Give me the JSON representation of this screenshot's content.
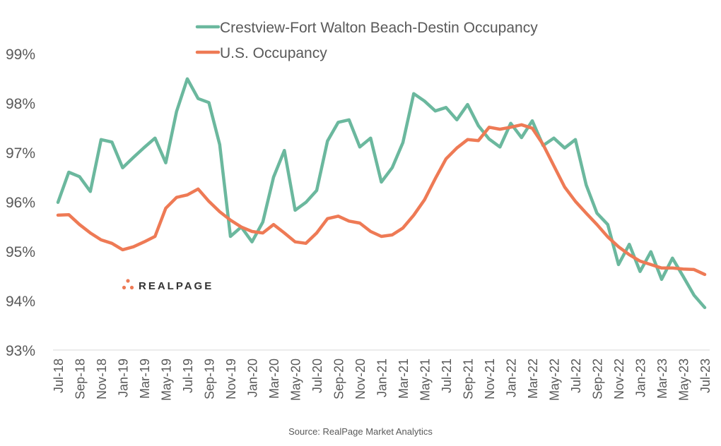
{
  "chart_data": {
    "type": "line",
    "title": "",
    "xlabel": "",
    "ylabel": "",
    "ylim": [
      93,
      99
    ],
    "yticks": [
      "93%",
      "94%",
      "95%",
      "96%",
      "97%",
      "98%",
      "99%"
    ],
    "ytick_values": [
      93,
      94,
      95,
      96,
      97,
      98,
      99
    ],
    "grid": false,
    "legend_position": "top-center",
    "x": [
      "Jul-18",
      "Aug-18",
      "Sep-18",
      "Oct-18",
      "Nov-18",
      "Dec-18",
      "Jan-19",
      "Feb-19",
      "Mar-19",
      "Apr-19",
      "May-19",
      "Jun-19",
      "Jul-19",
      "Aug-19",
      "Sep-19",
      "Oct-19",
      "Nov-19",
      "Dec-19",
      "Jan-20",
      "Feb-20",
      "Mar-20",
      "Apr-20",
      "May-20",
      "Jun-20",
      "Jul-20",
      "Aug-20",
      "Sep-20",
      "Oct-20",
      "Nov-20",
      "Dec-20",
      "Jan-21",
      "Feb-21",
      "Mar-21",
      "Apr-21",
      "May-21",
      "Jun-21",
      "Jul-21",
      "Aug-21",
      "Sep-21",
      "Oct-21",
      "Nov-21",
      "Dec-21",
      "Jan-22",
      "Feb-22",
      "Mar-22",
      "Apr-22",
      "May-22",
      "Jun-22",
      "Jul-22",
      "Aug-22",
      "Sep-22",
      "Oct-22",
      "Nov-22",
      "Dec-22",
      "Jan-23",
      "Feb-23",
      "Mar-23",
      "Apr-23",
      "May-23",
      "Jun-23",
      "Jul-23"
    ],
    "xtick_labels": [
      "Jul-18",
      "Sep-18",
      "Nov-18",
      "Jan-19",
      "Mar-19",
      "May-19",
      "Jul-19",
      "Sep-19",
      "Nov-19",
      "Jan-20",
      "Mar-20",
      "May-20",
      "Jul-20",
      "Sep-20",
      "Nov-20",
      "Jan-21",
      "Mar-21",
      "May-21",
      "Jul-21",
      "Sep-21",
      "Nov-21",
      "Jan-22",
      "Mar-22",
      "May-22",
      "Jul-22",
      "Sep-22",
      "Nov-22",
      "Jan-23",
      "Mar-23",
      "May-23",
      "Jul-23"
    ],
    "series": [
      {
        "name": "Crestview-Fort Walton Beach-Destin Occupancy",
        "color": "#6BB89E",
        "values": [
          95.99,
          96.6,
          96.51,
          96.21,
          97.26,
          97.21,
          96.69,
          96.9,
          97.1,
          97.29,
          96.79,
          97.83,
          98.49,
          98.09,
          98.01,
          97.16,
          95.3,
          95.49,
          95.19,
          95.59,
          96.5,
          97.04,
          95.83,
          95.99,
          96.23,
          97.23,
          97.61,
          97.66,
          97.11,
          97.29,
          96.4,
          96.69,
          97.2,
          98.19,
          98.04,
          97.84,
          97.91,
          97.66,
          97.97,
          97.54,
          97.27,
          97.11,
          97.59,
          97.3,
          97.64,
          97.14,
          97.29,
          97.09,
          97.26,
          96.34,
          95.77,
          95.54,
          94.73,
          95.14,
          94.59,
          94.99,
          94.43,
          94.86,
          94.49,
          94.11,
          93.86
        ]
      },
      {
        "name": "U.S. Occupancy",
        "color": "#EE7A55",
        "values": [
          95.73,
          95.74,
          95.54,
          95.37,
          95.23,
          95.16,
          95.03,
          95.09,
          95.19,
          95.3,
          95.87,
          96.09,
          96.14,
          96.26,
          96.01,
          95.8,
          95.63,
          95.49,
          95.4,
          95.37,
          95.54,
          95.37,
          95.19,
          95.16,
          95.37,
          95.66,
          95.71,
          95.61,
          95.57,
          95.4,
          95.3,
          95.33,
          95.47,
          95.73,
          96.04,
          96.47,
          96.87,
          97.09,
          97.26,
          97.24,
          97.51,
          97.47,
          97.51,
          97.56,
          97.49,
          97.16,
          96.73,
          96.3,
          96.01,
          95.77,
          95.54,
          95.29,
          95.09,
          94.93,
          94.8,
          94.73,
          94.66,
          94.66,
          94.64,
          94.63,
          94.53
        ]
      }
    ],
    "annotations": {
      "logo": "REALPAGE",
      "source": "Source: RealPage Market Analytics"
    }
  },
  "colors": {
    "axis": "#D9D9D9",
    "text": "#595959",
    "logo_dots": "#EE7A55"
  }
}
